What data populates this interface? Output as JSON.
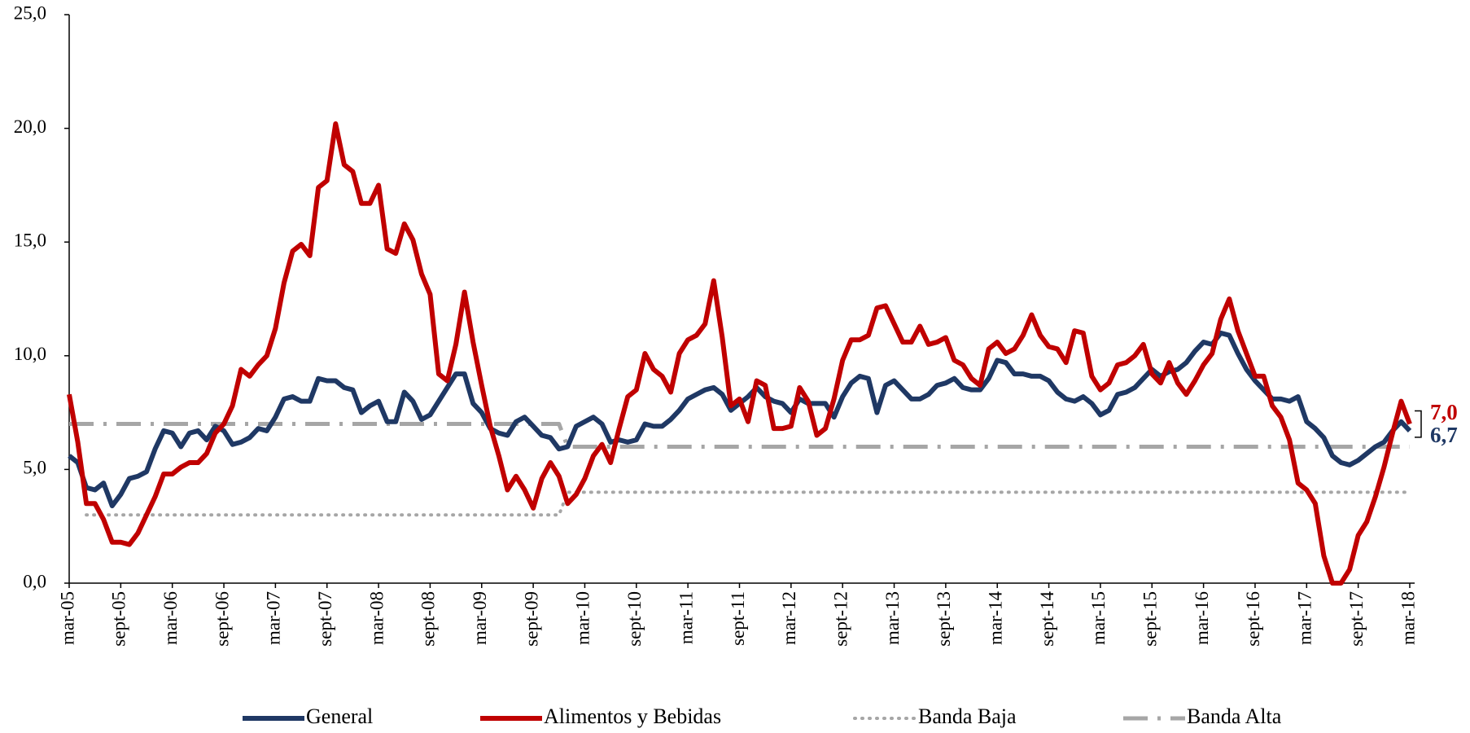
{
  "chart_data": {
    "type": "line",
    "categories": [
      "mar-05",
      null,
      null,
      null,
      null,
      null,
      "sept-05",
      null,
      null,
      null,
      null,
      null,
      "mar-06",
      null,
      null,
      null,
      null,
      null,
      "sept-06",
      null,
      null,
      null,
      null,
      null,
      "mar-07",
      null,
      null,
      null,
      null,
      null,
      "sept-07",
      null,
      null,
      null,
      null,
      null,
      "mar-08",
      null,
      null,
      null,
      null,
      null,
      "sept-08",
      null,
      null,
      null,
      null,
      null,
      "mar-09",
      null,
      null,
      null,
      null,
      null,
      "sept-09",
      null,
      null,
      null,
      null,
      null,
      "mar-10",
      null,
      null,
      null,
      null,
      null,
      "sept-10",
      null,
      null,
      null,
      null,
      null,
      "mar-11",
      null,
      null,
      null,
      null,
      null,
      "sept-11",
      null,
      null,
      null,
      null,
      null,
      "mar-12",
      null,
      null,
      null,
      null,
      null,
      "sept-12",
      null,
      null,
      null,
      null,
      null,
      "mar-13",
      null,
      null,
      null,
      null,
      null,
      "sept-13",
      null,
      null,
      null,
      null,
      null,
      "mar-14",
      null,
      null,
      null,
      null,
      null,
      "sept-14",
      null,
      null,
      null,
      null,
      null,
      "mar-15",
      null,
      null,
      null,
      null,
      null,
      "sept-15",
      null,
      null,
      null,
      null,
      null,
      "mar-16",
      null,
      null,
      null,
      null,
      null,
      "sept-16",
      null,
      null,
      null,
      null,
      null,
      "mar-17",
      null,
      null,
      null,
      null,
      null,
      "sept-17",
      null,
      null,
      null,
      null,
      null,
      "mar-18"
    ],
    "series": [
      {
        "name": "General",
        "color": "#1f3864",
        "dash": "solid",
        "width": 6,
        "values": [
          5.6,
          5.3,
          4.2,
          4.1,
          4.4,
          3.4,
          3.9,
          4.6,
          4.7,
          4.9,
          5.9,
          6.7,
          6.6,
          6.0,
          6.6,
          6.7,
          6.3,
          6.9,
          6.7,
          6.1,
          6.2,
          6.4,
          6.8,
          6.7,
          7.3,
          8.1,
          8.2,
          8.0,
          8.0,
          9.0,
          8.9,
          8.9,
          8.6,
          8.5,
          7.5,
          7.8,
          8.0,
          7.1,
          7.1,
          8.4,
          8.0,
          7.2,
          7.4,
          8.0,
          8.6,
          9.2,
          9.2,
          7.9,
          7.5,
          6.8,
          6.6,
          6.5,
          7.1,
          7.3,
          6.9,
          6.5,
          6.4,
          5.9,
          6.0,
          6.9,
          7.1,
          7.3,
          7.0,
          6.2,
          6.3,
          6.2,
          6.3,
          7.0,
          6.9,
          6.9,
          7.2,
          7.6,
          8.1,
          8.3,
          8.5,
          8.6,
          8.3,
          7.6,
          7.9,
          8.2,
          8.6,
          8.2,
          8.0,
          7.9,
          7.5,
          8.1,
          7.9,
          7.9,
          7.9,
          7.3,
          8.2,
          8.8,
          9.1,
          9.0,
          7.5,
          8.7,
          8.9,
          8.5,
          8.1,
          8.1,
          8.3,
          8.7,
          8.8,
          9.0,
          8.6,
          8.5,
          8.5,
          9.0,
          9.8,
          9.7,
          9.2,
          9.2,
          9.1,
          9.1,
          8.9,
          8.4,
          8.1,
          8.0,
          8.2,
          7.9,
          7.4,
          7.6,
          8.3,
          8.4,
          8.6,
          9.0,
          9.4,
          9.1,
          9.3,
          9.4,
          9.7,
          10.2,
          10.6,
          10.5,
          11.0,
          10.9,
          10.1,
          9.4,
          8.9,
          8.5,
          8.1,
          8.1,
          8.0,
          8.2,
          7.1,
          6.8,
          6.4,
          5.6,
          5.3,
          5.2,
          5.4,
          5.7,
          6.0,
          6.2,
          6.7,
          7.1,
          6.7
        ],
        "value_labels": [
          null,
          null,
          null,
          null,
          null,
          null,
          null,
          null,
          null,
          null,
          null,
          null,
          null,
          null,
          null,
          null,
          null,
          null,
          null,
          null,
          null,
          null,
          null,
          null,
          null,
          null,
          null,
          null,
          null,
          null,
          null,
          null,
          null,
          null,
          null,
          null,
          null,
          null,
          null,
          null,
          null,
          null,
          null,
          null,
          null,
          null,
          null,
          null,
          null,
          null,
          null,
          null,
          null,
          null,
          null,
          null,
          null,
          null,
          null,
          null,
          null,
          null,
          null,
          null,
          null,
          null,
          null,
          null,
          null,
          null,
          null,
          null,
          null,
          null,
          null,
          null,
          null,
          null,
          null,
          null,
          null,
          null,
          null,
          null,
          null,
          null,
          null,
          null,
          null,
          null,
          null,
          null,
          null,
          null,
          null,
          null,
          null,
          null,
          null,
          null,
          null,
          null,
          null,
          null,
          null,
          null,
          null,
          null,
          null,
          null,
          null,
          null,
          null,
          null,
          null,
          null,
          null,
          null,
          null,
          null,
          null,
          null,
          null,
          null,
          null,
          null,
          null,
          null,
          null,
          null,
          null,
          null,
          null,
          null,
          null,
          null,
          null,
          null,
          null,
          null,
          null,
          null,
          null,
          null,
          null,
          null,
          null,
          null,
          null,
          null,
          null,
          null,
          null,
          null,
          null,
          null,
          "6,7"
        ]
      },
      {
        "name": "Alimentos y Bebidas",
        "color": "#c00000",
        "dash": "solid",
        "width": 6,
        "values": [
          8.3,
          6.2,
          3.5,
          3.5,
          2.8,
          1.8,
          1.8,
          1.7,
          2.2,
          3.0,
          3.8,
          4.8,
          4.8,
          5.1,
          5.3,
          5.3,
          5.7,
          6.6,
          7.0,
          7.8,
          9.4,
          9.1,
          9.6,
          10.0,
          11.2,
          13.2,
          14.6,
          14.9,
          14.4,
          17.4,
          17.7,
          20.2,
          18.4,
          18.1,
          16.7,
          16.7,
          17.5,
          14.7,
          14.5,
          15.8,
          15.1,
          13.6,
          12.7,
          9.2,
          8.9,
          10.5,
          12.8,
          10.6,
          8.7,
          6.9,
          5.6,
          4.1,
          4.7,
          4.1,
          3.3,
          4.6,
          5.3,
          4.7,
          3.5,
          3.9,
          4.6,
          5.6,
          6.1,
          5.3,
          6.8,
          8.2,
          8.5,
          10.1,
          9.4,
          9.1,
          8.4,
          10.1,
          10.7,
          10.9,
          11.4,
          13.3,
          10.8,
          7.8,
          8.1,
          7.1,
          8.9,
          8.7,
          6.8,
          6.8,
          6.9,
          8.6,
          8.0,
          6.5,
          6.8,
          8.1,
          9.8,
          10.7,
          10.7,
          10.9,
          12.1,
          12.2,
          11.4,
          10.6,
          10.6,
          11.3,
          10.5,
          10.6,
          10.8,
          9.8,
          9.6,
          9.0,
          8.7,
          10.3,
          10.6,
          10.1,
          10.3,
          10.9,
          11.8,
          10.9,
          10.4,
          10.3,
          9.7,
          11.1,
          11.0,
          9.1,
          8.5,
          8.8,
          9.6,
          9.7,
          10.0,
          10.5,
          9.2,
          8.8,
          9.7,
          8.8,
          8.3,
          8.9,
          9.6,
          10.1,
          11.6,
          12.5,
          11.1,
          10.1,
          9.1,
          9.1,
          7.8,
          7.3,
          6.3,
          4.4,
          4.1,
          3.5,
          1.2,
          0.0,
          0.0,
          0.6,
          2.1,
          2.7,
          3.8,
          5.1,
          6.6,
          8.0,
          7.0
        ],
        "value_labels": [
          null,
          null,
          null,
          null,
          null,
          null,
          null,
          null,
          null,
          null,
          null,
          null,
          null,
          null,
          null,
          null,
          null,
          null,
          null,
          null,
          null,
          null,
          null,
          null,
          null,
          null,
          null,
          null,
          null,
          null,
          null,
          null,
          null,
          null,
          null,
          null,
          null,
          null,
          null,
          null,
          null,
          null,
          null,
          null,
          null,
          null,
          null,
          null,
          null,
          null,
          null,
          null,
          null,
          null,
          null,
          null,
          null,
          null,
          null,
          null,
          null,
          null,
          null,
          null,
          null,
          null,
          null,
          null,
          null,
          null,
          null,
          null,
          null,
          null,
          null,
          null,
          null,
          null,
          null,
          null,
          null,
          null,
          null,
          null,
          null,
          null,
          null,
          null,
          null,
          null,
          null,
          null,
          null,
          null,
          null,
          null,
          null,
          null,
          null,
          null,
          null,
          null,
          null,
          null,
          null,
          null,
          null,
          null,
          null,
          null,
          null,
          null,
          null,
          null,
          null,
          null,
          null,
          null,
          null,
          null,
          null,
          null,
          null,
          null,
          null,
          null,
          null,
          null,
          null,
          null,
          null,
          null,
          null,
          null,
          null,
          null,
          null,
          null,
          null,
          null,
          null,
          null,
          null,
          null,
          null,
          null,
          null,
          null,
          null,
          null,
          null,
          null,
          null,
          null,
          null,
          null,
          "7,0"
        ]
      },
      {
        "name": "Banda Baja",
        "color": "#a6a6a6",
        "dash": "dotted",
        "width": 4,
        "values": [
          null,
          null,
          3,
          3,
          3,
          3,
          3,
          3,
          3,
          3,
          3,
          3,
          3,
          3,
          3,
          3,
          3,
          3,
          3,
          3,
          3,
          3,
          3,
          3,
          3,
          3,
          3,
          3,
          3,
          3,
          3,
          3,
          3,
          3,
          3,
          3,
          3,
          3,
          3,
          3,
          3,
          3,
          3,
          3,
          3,
          3,
          3,
          3,
          3,
          3,
          3,
          3,
          3,
          3,
          3,
          3,
          3,
          3,
          4,
          4,
          4,
          4,
          4,
          4,
          4,
          4,
          4,
          4,
          4,
          4,
          4,
          4,
          4,
          4,
          4,
          4,
          4,
          4,
          4,
          4,
          4,
          4,
          4,
          4,
          4,
          4,
          4,
          4,
          4,
          4,
          4,
          4,
          4,
          4,
          4,
          4,
          4,
          4,
          4,
          4,
          4,
          4,
          4,
          4,
          4,
          4,
          4,
          4,
          4,
          4,
          4,
          4,
          4,
          4,
          4,
          4,
          4,
          4,
          4,
          4,
          4,
          4,
          4,
          4,
          4,
          4,
          4,
          4,
          4,
          4,
          4,
          4,
          4,
          4,
          4,
          4,
          4,
          4,
          4,
          4,
          4,
          4,
          4,
          4,
          4,
          4,
          4,
          4,
          4,
          4,
          4,
          4,
          4,
          4,
          4,
          4,
          4
        ]
      },
      {
        "name": "Banda Alta",
        "color": "#a6a6a6",
        "dash": "dashdot",
        "width": 5,
        "values": [
          7,
          7,
          7,
          7,
          7,
          7,
          7,
          7,
          7,
          7,
          7,
          7,
          7,
          7,
          7,
          7,
          7,
          7,
          7,
          7,
          7,
          7,
          7,
          7,
          7,
          7,
          7,
          7,
          7,
          7,
          7,
          7,
          7,
          7,
          7,
          7,
          7,
          7,
          7,
          7,
          7,
          7,
          7,
          7,
          7,
          7,
          7,
          7,
          7,
          7,
          7,
          7,
          7,
          7,
          7,
          7,
          7,
          7,
          6,
          6,
          6,
          6,
          6,
          6,
          6,
          6,
          6,
          6,
          6,
          6,
          6,
          6,
          6,
          6,
          6,
          6,
          6,
          6,
          6,
          6,
          6,
          6,
          6,
          6,
          6,
          6,
          6,
          6,
          6,
          6,
          6,
          6,
          6,
          6,
          6,
          6,
          6,
          6,
          6,
          6,
          6,
          6,
          6,
          6,
          6,
          6,
          6,
          6,
          6,
          6,
          6,
          6,
          6,
          6,
          6,
          6,
          6,
          6,
          6,
          6,
          6,
          6,
          6,
          6,
          6,
          6,
          6,
          6,
          6,
          6,
          6,
          6,
          6,
          6,
          6,
          6,
          6,
          6,
          6,
          6,
          6,
          6,
          6,
          6,
          6,
          6,
          6,
          6,
          6,
          6,
          6,
          6,
          6,
          6,
          6,
          6,
          6
        ]
      }
    ],
    "ylim": [
      0,
      25
    ],
    "yticks": [
      {
        "value": 0,
        "label": "0,0"
      },
      {
        "value": 5,
        "label": "5,0"
      },
      {
        "value": 10,
        "label": "10,0"
      },
      {
        "value": 15,
        "label": "15,0"
      },
      {
        "value": 20,
        "label": "20,0"
      },
      {
        "value": 25,
        "label": "25,0"
      }
    ],
    "grid": false,
    "legend": "bottom"
  }
}
